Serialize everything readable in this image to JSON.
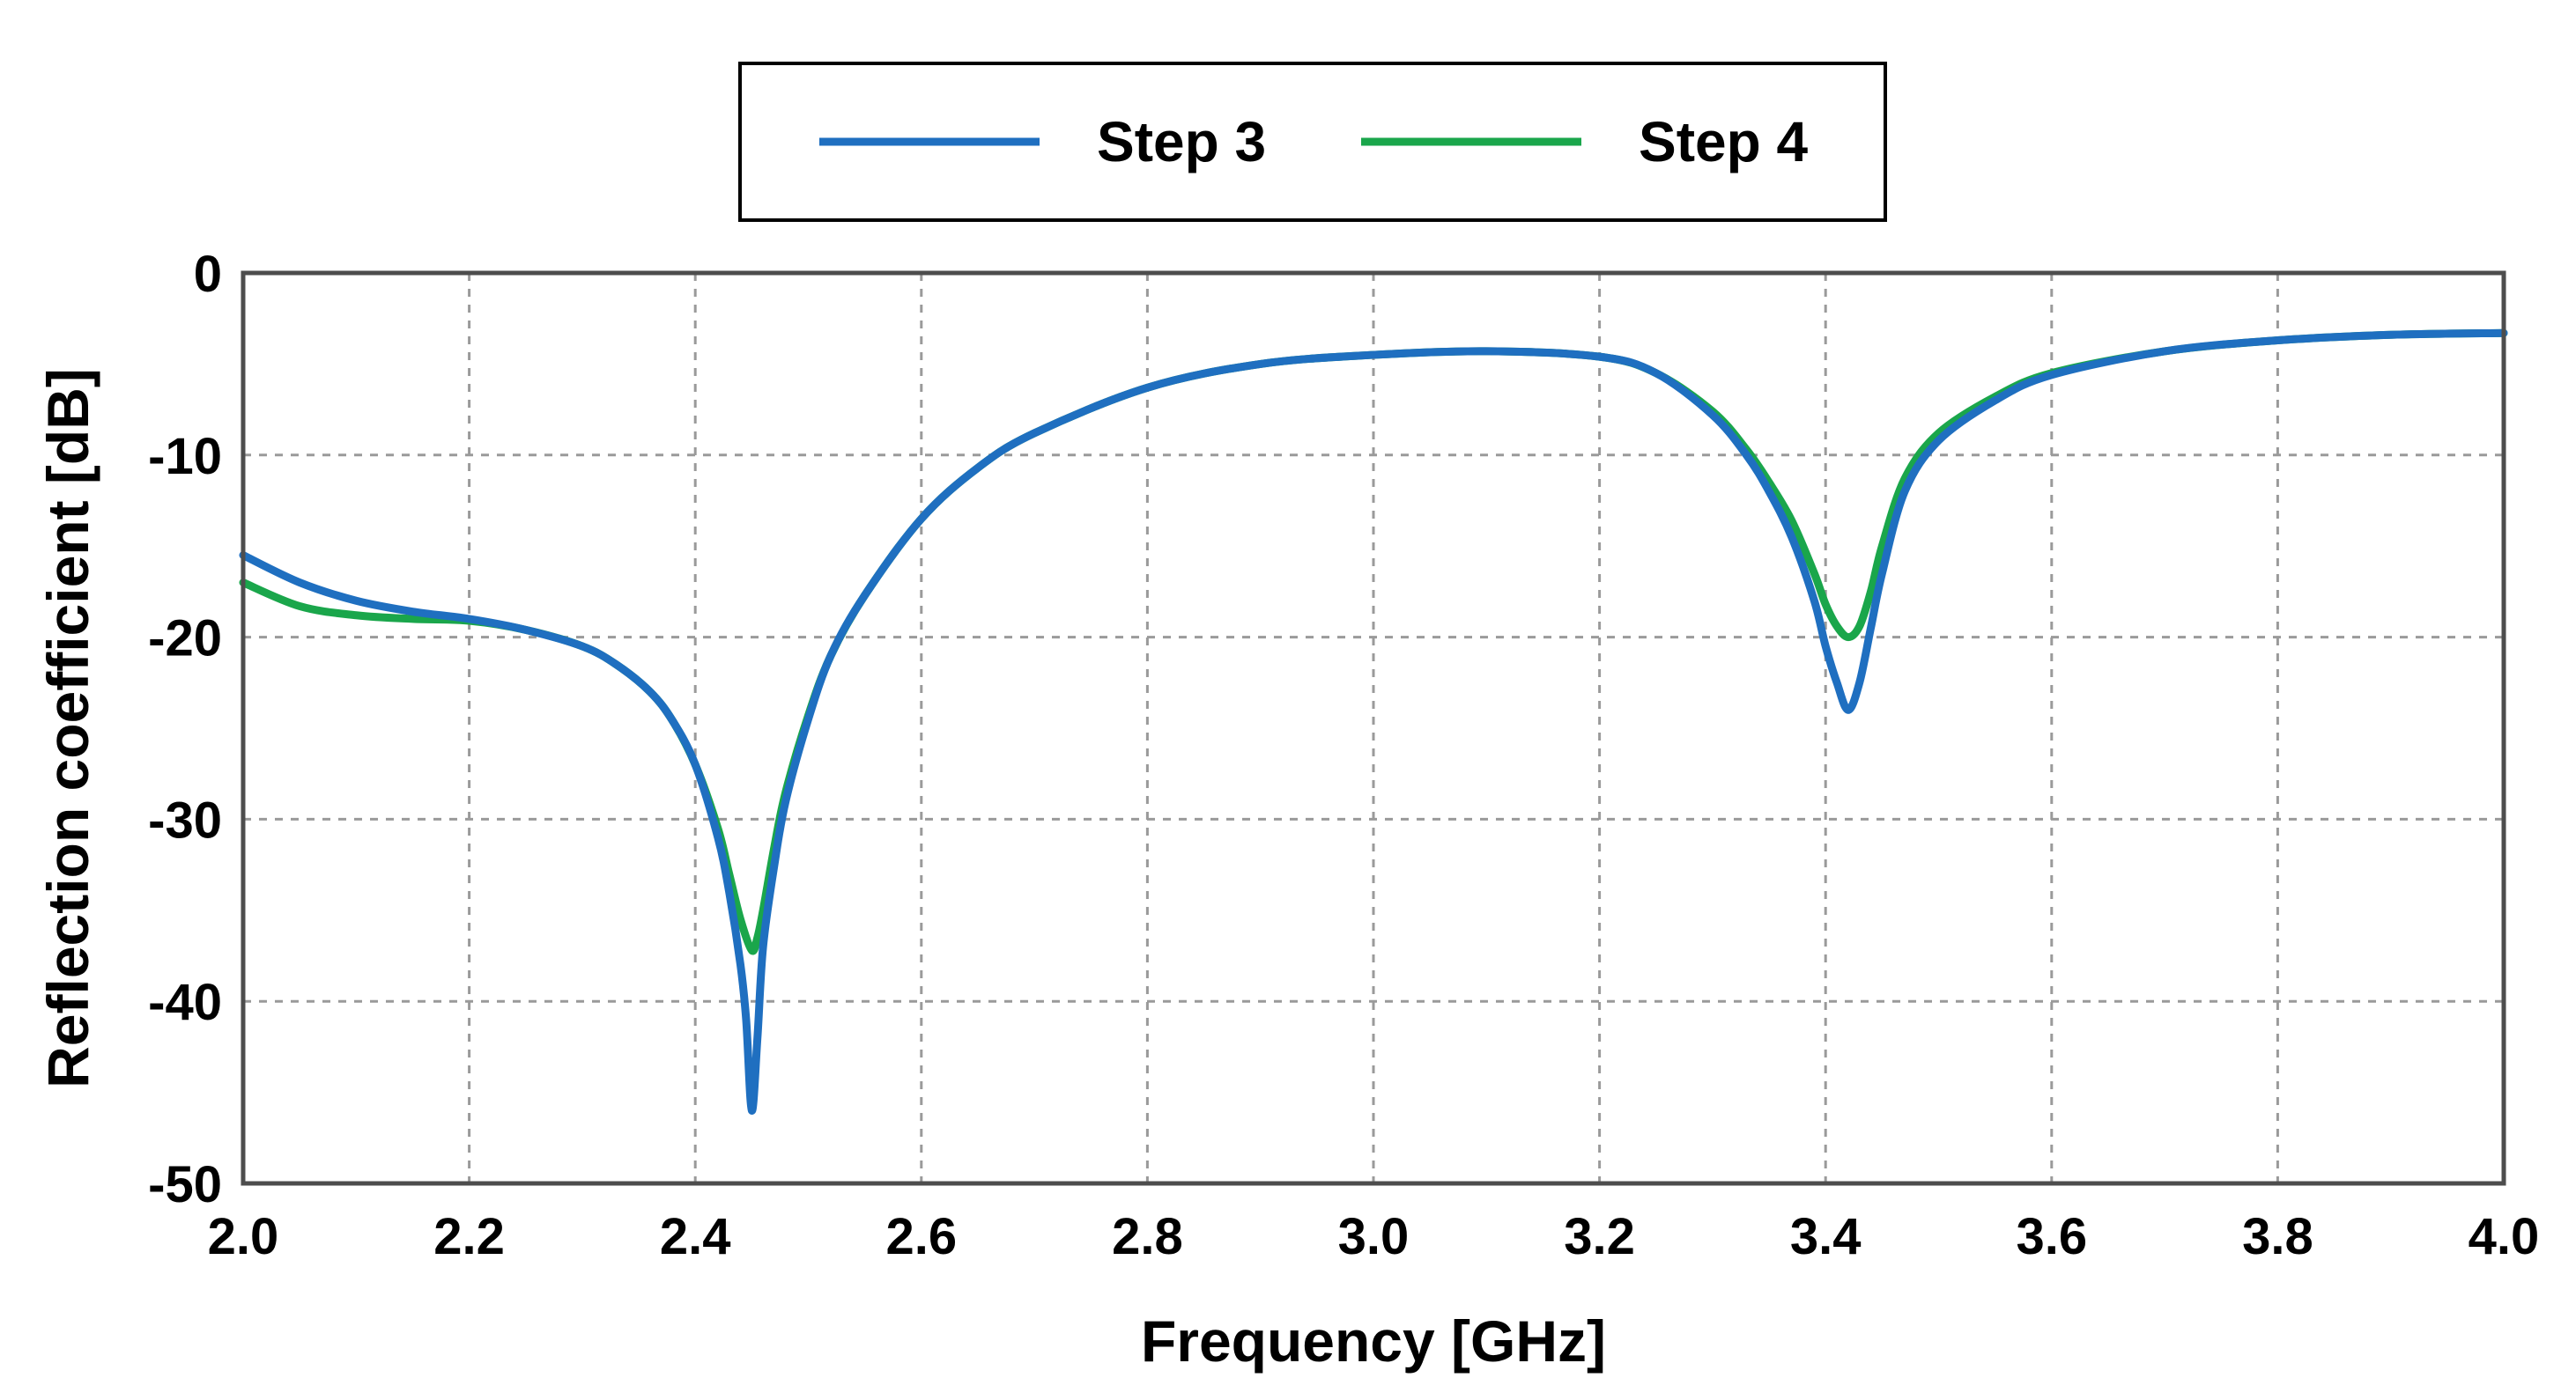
{
  "chart_data": {
    "type": "line",
    "xlabel": "Frequency [GHz]",
    "ylabel": "Reflection coefficient [dB]",
    "xlim": [
      2.0,
      4.0
    ],
    "ylim": [
      -50,
      0
    ],
    "xticks": [
      "2.0",
      "2.2",
      "2.4",
      "2.6",
      "2.8",
      "3.0",
      "3.2",
      "3.4",
      "3.6",
      "3.8",
      "4.0"
    ],
    "yticks": [
      "0",
      "-10",
      "-20",
      "-30",
      "-40",
      "-50"
    ],
    "grid": true,
    "legend_position": "top-center",
    "series": [
      {
        "name": "Step 3",
        "color": "#1f6fc0",
        "x": [
          2.0,
          2.05,
          2.1,
          2.15,
          2.2,
          2.25,
          2.3,
          2.33,
          2.36,
          2.38,
          2.4,
          2.42,
          2.43,
          2.44,
          2.445,
          2.45,
          2.455,
          2.46,
          2.47,
          2.48,
          2.5,
          2.52,
          2.55,
          2.6,
          2.65,
          2.7,
          2.8,
          2.9,
          3.0,
          3.1,
          3.2,
          3.25,
          3.3,
          3.33,
          3.35,
          3.37,
          3.39,
          3.4,
          3.41,
          3.42,
          3.43,
          3.44,
          3.45,
          3.47,
          3.5,
          3.55,
          3.6,
          3.7,
          3.8,
          3.9,
          4.0
        ],
        "y": [
          -15.5,
          -17.0,
          -18.0,
          -18.6,
          -19.0,
          -19.6,
          -20.5,
          -21.5,
          -23.0,
          -24.6,
          -27.0,
          -31.0,
          -34.0,
          -38.0,
          -41.0,
          -46.0,
          -42.0,
          -37.0,
          -32.5,
          -29.0,
          -24.5,
          -21.0,
          -17.7,
          -13.5,
          -10.7,
          -8.8,
          -6.3,
          -5.0,
          -4.5,
          -4.3,
          -4.6,
          -5.5,
          -7.8,
          -10.0,
          -12.0,
          -14.5,
          -18.0,
          -20.5,
          -22.5,
          -24.0,
          -22.5,
          -19.5,
          -16.5,
          -12.0,
          -9.2,
          -7.0,
          -5.6,
          -4.3,
          -3.7,
          -3.4,
          -3.3
        ]
      },
      {
        "name": "Step 4",
        "color": "#1aa64b",
        "x": [
          2.0,
          2.05,
          2.1,
          2.15,
          2.2,
          2.25,
          2.3,
          2.33,
          2.36,
          2.38,
          2.4,
          2.42,
          2.43,
          2.44,
          2.45,
          2.455,
          2.46,
          2.47,
          2.48,
          2.5,
          2.52,
          2.55,
          2.6,
          2.65,
          2.7,
          2.8,
          2.9,
          3.0,
          3.1,
          3.2,
          3.25,
          3.3,
          3.33,
          3.35,
          3.37,
          3.39,
          3.4,
          3.41,
          3.42,
          3.43,
          3.44,
          3.45,
          3.47,
          3.5,
          3.55,
          3.6,
          3.7,
          3.8,
          3.9,
          4.0
        ],
        "y": [
          -17.0,
          -18.3,
          -18.8,
          -19.0,
          -19.1,
          -19.6,
          -20.5,
          -21.5,
          -23.0,
          -24.6,
          -27.0,
          -30.5,
          -33.0,
          -35.5,
          -37.2,
          -36.5,
          -35.0,
          -31.5,
          -28.5,
          -24.3,
          -21.0,
          -17.7,
          -13.5,
          -10.7,
          -8.8,
          -6.3,
          -5.0,
          -4.5,
          -4.3,
          -4.6,
          -5.5,
          -7.6,
          -9.7,
          -11.5,
          -13.6,
          -16.5,
          -18.2,
          -19.4,
          -20.0,
          -19.4,
          -17.5,
          -15.0,
          -11.3,
          -8.8,
          -6.8,
          -5.5,
          -4.3,
          -3.7,
          -3.4,
          -3.3
        ]
      }
    ]
  }
}
